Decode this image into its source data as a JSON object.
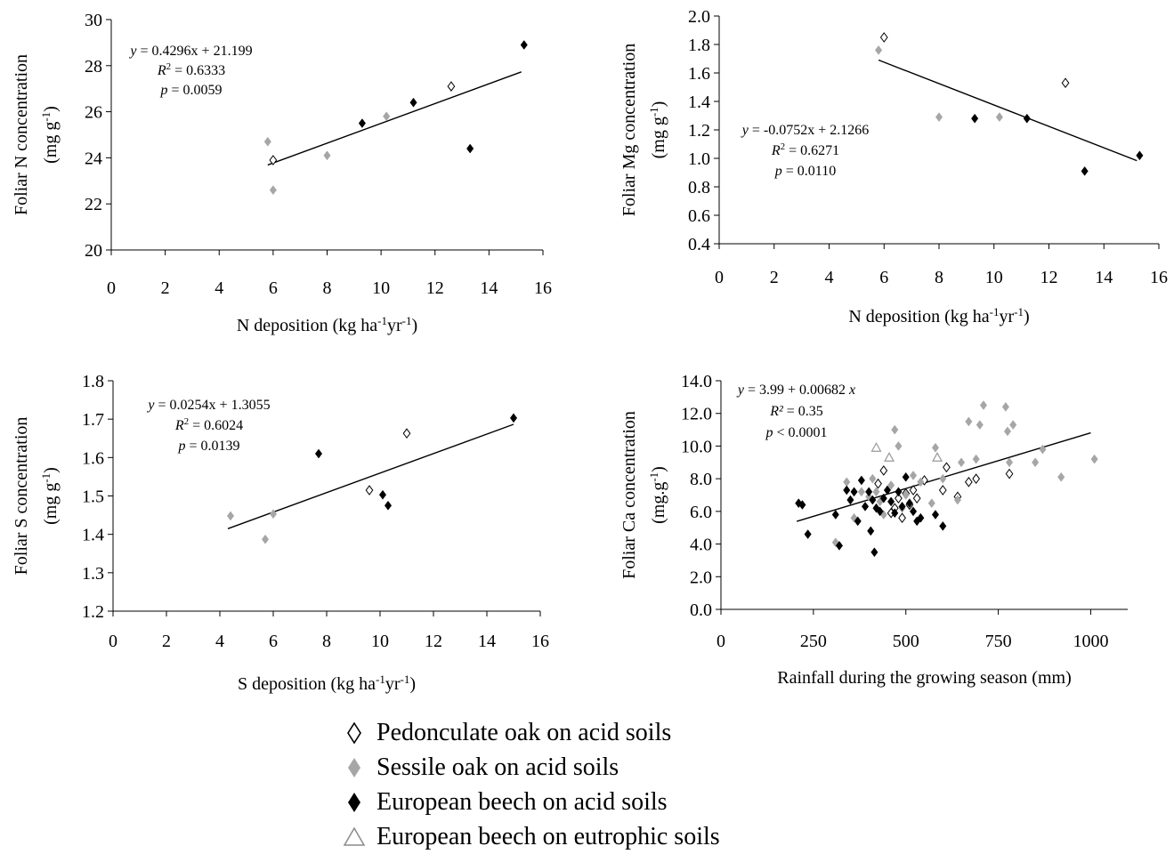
{
  "chart_data": [
    {
      "type": "scatter",
      "id": "n",
      "ylabel": "Foliar N concentration",
      "ylabel_unit_base": "(mg g",
      "ylabel_unit_sup": "-1",
      "ylabel_unit_end": ")",
      "xlabel_parts": [
        "N deposition (kg ha",
        "-1",
        "yr",
        "-1",
        ")"
      ],
      "xlim": [
        0,
        16
      ],
      "ylim": [
        20,
        30
      ],
      "xticks": [
        0,
        2,
        4,
        6,
        8,
        10,
        12,
        14,
        16
      ],
      "yticks": [
        20,
        22,
        24,
        26,
        28,
        30
      ],
      "tick_decimals_y": 0,
      "equation": [
        "y = 0.4296x + 21.199",
        "R2 = 0.6333",
        "p = 0.0059"
      ],
      "trend": {
        "x": [
          5.8,
          15.2
        ],
        "intercept": 21.199,
        "slope": 0.4296
      },
      "series": [
        {
          "name": "Pedonculate oak on acid soils",
          "marker": "open-diamond",
          "x": [
            6.0,
            12.6
          ],
          "y": [
            23.9,
            27.1
          ]
        },
        {
          "name": "Sessile oak on acid soils",
          "marker": "grey-diamond",
          "x": [
            5.8,
            6.0,
            8.0,
            10.2
          ],
          "y": [
            24.7,
            22.6,
            24.1,
            25.8
          ]
        },
        {
          "name": "European beech on acid soils",
          "marker": "black-diamond",
          "x": [
            9.3,
            11.2,
            13.3,
            15.3
          ],
          "y": [
            25.5,
            26.4,
            24.4,
            28.9
          ]
        }
      ]
    },
    {
      "type": "scatter",
      "id": "mg",
      "ylabel": "Foliar Mg concentration",
      "ylabel_unit_base": "(mg g",
      "ylabel_unit_sup": "-1",
      "ylabel_unit_end": ")",
      "xlabel_parts": [
        "N deposition (kg ha",
        "-1",
        "yr",
        "-1",
        ")"
      ],
      "xlim": [
        0,
        16
      ],
      "ylim": [
        0.4,
        2.0
      ],
      "xticks": [
        0,
        2,
        4,
        6,
        8,
        10,
        12,
        14,
        16
      ],
      "yticks": [
        0.4,
        0.6,
        0.8,
        1.0,
        1.2,
        1.4,
        1.6,
        1.8,
        2.0
      ],
      "tick_decimals_y": 1,
      "equation": [
        "y = -0.0752x + 2.1266",
        "R2 = 0.6271",
        "p = 0.0110"
      ],
      "trend": {
        "x": [
          5.8,
          15.2
        ],
        "intercept": 2.1266,
        "slope": -0.0752
      },
      "series": [
        {
          "name": "Pedonculate oak on acid soils",
          "marker": "open-diamond",
          "x": [
            6.0,
            12.6
          ],
          "y": [
            1.85,
            1.53
          ]
        },
        {
          "name": "Sessile oak on acid soils",
          "marker": "grey-diamond",
          "x": [
            5.8,
            8.0,
            10.2
          ],
          "y": [
            1.76,
            1.29,
            1.29
          ]
        },
        {
          "name": "European beech on acid soils",
          "marker": "black-diamond",
          "x": [
            9.3,
            11.2,
            13.3,
            15.3
          ],
          "y": [
            1.28,
            1.28,
            0.91,
            1.02
          ]
        }
      ]
    },
    {
      "type": "scatter",
      "id": "s",
      "ylabel": "Foliar S concentration",
      "ylabel_unit_base": "(mg g",
      "ylabel_unit_sup": "-1",
      "ylabel_unit_end": ")",
      "xlabel_parts": [
        "S deposition (kg ha",
        "-1",
        "yr",
        "-1",
        ")"
      ],
      "xlim": [
        0,
        16
      ],
      "ylim": [
        1.2,
        1.8
      ],
      "xticks": [
        0,
        2,
        4,
        6,
        8,
        10,
        12,
        14,
        16
      ],
      "yticks": [
        1.2,
        1.3,
        1.4,
        1.5,
        1.6,
        1.7,
        1.8
      ],
      "tick_decimals_y": 1,
      "equation": [
        "y = 0.0254x + 1.3055",
        "R2 = 0.6024",
        "p = 0.0139"
      ],
      "trend": {
        "x": [
          4.3,
          15.0
        ],
        "intercept": 1.3055,
        "slope": 0.0254
      },
      "series": [
        {
          "name": "Pedonculate oak on acid soils",
          "marker": "open-diamond",
          "x": [
            9.6,
            11.0
          ],
          "y": [
            1.515,
            1.663
          ]
        },
        {
          "name": "Sessile oak on acid soils",
          "marker": "grey-diamond",
          "x": [
            4.4,
            5.7,
            6.0
          ],
          "y": [
            1.448,
            1.387,
            1.453
          ]
        },
        {
          "name": "European beech on acid soils",
          "marker": "black-diamond",
          "x": [
            7.7,
            10.1,
            10.3,
            15.0
          ],
          "y": [
            1.61,
            1.503,
            1.475,
            1.703
          ]
        }
      ]
    },
    {
      "type": "scatter",
      "id": "ca",
      "ylabel": "Foliar Ca concentration",
      "ylabel_unit_base": "(mg.g",
      "ylabel_unit_sup": "-1",
      "ylabel_unit_end": ")",
      "xlabel_parts": [
        "Rainfall during the growing season (mm)"
      ],
      "xlim": [
        0,
        1100
      ],
      "ylim": [
        0,
        14
      ],
      "xticks": [
        0,
        250,
        500,
        750,
        1000
      ],
      "yticks": [
        0,
        2,
        4,
        6,
        8,
        10,
        12,
        14
      ],
      "tick_decimals_y": 1,
      "equation": [
        "y = 3.99 + 0.00682 x",
        "R² = 0.35",
        "p < 0.0001"
      ],
      "trend": {
        "x": [
          205,
          1000
        ],
        "intercept": 3.99,
        "slope": 0.00682
      },
      "series": [
        {
          "name": "Pedonculate oak on acid soils",
          "marker": "open-diamond",
          "x": [
            425,
            440,
            460,
            470,
            480,
            490,
            500,
            510,
            520,
            530,
            550,
            600,
            610,
            640,
            670,
            690,
            780
          ],
          "y": [
            7.7,
            8.5,
            5.9,
            6.2,
            6.8,
            5.6,
            7.1,
            6.4,
            7.3,
            6.8,
            7.9,
            7.3,
            8.7,
            6.9,
            7.8,
            8.0,
            8.3
          ]
        },
        {
          "name": "Sessile oak on acid soils",
          "marker": "grey-diamond",
          "x": [
            310,
            340,
            360,
            380,
            400,
            410,
            420,
            430,
            440,
            460,
            470,
            480,
            490,
            500,
            520,
            540,
            570,
            580,
            600,
            640,
            650,
            670,
            690,
            700,
            710,
            770,
            775,
            780,
            790,
            850,
            870,
            920,
            1010
          ],
          "y": [
            4.1,
            7.8,
            5.6,
            7.2,
            6.9,
            8.0,
            7.2,
            6.6,
            5.8,
            7.6,
            11.0,
            10.0,
            6.2,
            7.0,
            8.2,
            7.8,
            6.5,
            9.9,
            8.0,
            6.7,
            9.0,
            11.5,
            9.2,
            11.3,
            12.5,
            12.4,
            10.9,
            9.0,
            11.3,
            9.0,
            9.8,
            8.1,
            9.2
          ]
        },
        {
          "name": "European beech on acid soils",
          "marker": "black-diamond",
          "x": [
            210,
            220,
            235,
            310,
            320,
            340,
            350,
            360,
            370,
            380,
            390,
            400,
            405,
            410,
            415,
            420,
            430,
            440,
            450,
            460,
            470,
            480,
            490,
            500,
            510,
            520,
            530,
            540,
            580,
            600
          ],
          "y": [
            6.5,
            6.4,
            4.6,
            5.8,
            3.9,
            7.3,
            6.7,
            7.2,
            5.4,
            7.9,
            6.3,
            7.2,
            4.8,
            6.7,
            3.5,
            6.2,
            6.0,
            6.8,
            7.3,
            6.6,
            5.9,
            7.2,
            6.3,
            8.1,
            6.5,
            6.0,
            5.4,
            5.6,
            5.8,
            5.1
          ]
        },
        {
          "name": "European beech on eutrophic soils",
          "marker": "open-triangle",
          "x": [
            420,
            455,
            585
          ],
          "y": [
            9.9,
            9.3,
            9.3
          ]
        }
      ]
    }
  ],
  "legend": [
    {
      "label": "Pedonculate oak on acid soils",
      "marker": "open-diamond"
    },
    {
      "label": "Sessile oak on acid soils",
      "marker": "grey-diamond"
    },
    {
      "label": "European beech on acid soils",
      "marker": "black-diamond"
    },
    {
      "label": "European beech on eutrophic soils",
      "marker": "open-triangle"
    }
  ]
}
